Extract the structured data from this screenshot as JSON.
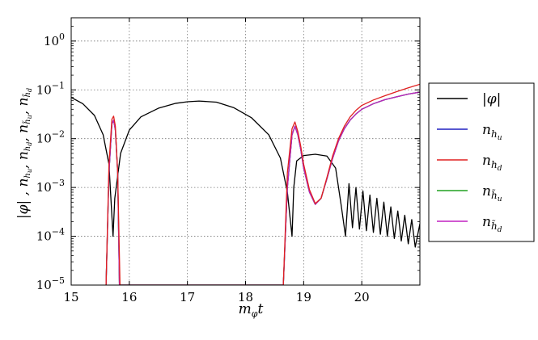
{
  "chart_data": {
    "type": "line",
    "xlabel": "m_φt",
    "ylabel": "|φ| , n_hu, n_hd, n_h̃u, n_h̃d",
    "xlim": [
      15,
      21
    ],
    "ylim": [
      1e-05,
      3
    ],
    "yscale": "log",
    "grid": true,
    "legend_position": "right",
    "x_ticks": [
      "15",
      "16",
      "17",
      "18",
      "19",
      "20"
    ],
    "y_ticks": [
      "10^-5",
      "10^-4",
      "10^-3",
      "10^-2",
      "10^-1",
      "10^0"
    ],
    "y_tick_values": [
      1e-05,
      0.0001,
      0.001,
      0.01,
      0.1,
      1
    ],
    "series": [
      {
        "name": "|φ|",
        "color": "#000000",
        "description": "oscillating condensate amplitude with zero crossings",
        "points": [
          [
            15.0,
            0.07
          ],
          [
            15.2,
            0.052
          ],
          [
            15.4,
            0.03
          ],
          [
            15.55,
            0.012
          ],
          [
            15.65,
            0.003
          ],
          [
            15.72,
            0.0001
          ],
          [
            15.75,
            0.0006
          ],
          [
            15.85,
            0.005
          ],
          [
            16.0,
            0.015
          ],
          [
            16.2,
            0.028
          ],
          [
            16.5,
            0.042
          ],
          [
            16.8,
            0.053
          ],
          [
            17.0,
            0.057
          ],
          [
            17.2,
            0.059
          ],
          [
            17.5,
            0.056
          ],
          [
            17.8,
            0.043
          ],
          [
            18.1,
            0.027
          ],
          [
            18.4,
            0.012
          ],
          [
            18.6,
            0.004
          ],
          [
            18.72,
            0.0008
          ],
          [
            18.8,
            0.0001
          ],
          [
            18.83,
            0.001
          ],
          [
            18.88,
            0.0035
          ],
          [
            19.0,
            0.0045
          ],
          [
            19.2,
            0.0048
          ],
          [
            19.4,
            0.0044
          ],
          [
            19.55,
            0.0025
          ],
          [
            19.65,
            0.0004
          ],
          [
            19.72,
            0.0001
          ],
          [
            19.78,
            0.0012
          ],
          [
            19.84,
            0.00015
          ],
          [
            19.9,
            0.001
          ],
          [
            19.96,
            0.00014
          ],
          [
            20.02,
            0.00085
          ],
          [
            20.08,
            0.00013
          ],
          [
            20.14,
            0.0007
          ],
          [
            20.2,
            0.00012
          ],
          [
            20.26,
            0.0006
          ],
          [
            20.32,
            0.00011
          ],
          [
            20.38,
            0.0005
          ],
          [
            20.44,
            0.0001
          ],
          [
            20.5,
            0.0004
          ],
          [
            20.56,
            9e-05
          ],
          [
            20.62,
            0.00033
          ],
          [
            20.68,
            8e-05
          ],
          [
            20.74,
            0.00027
          ],
          [
            20.8,
            7e-05
          ],
          [
            20.86,
            0.00022
          ],
          [
            20.92,
            6e-05
          ],
          [
            21.0,
            0.00018
          ]
        ]
      },
      {
        "name": "n_hu",
        "color": "#2020c0",
        "points": [
          [
            15.6,
            1e-05
          ],
          [
            15.65,
            0.002
          ],
          [
            15.7,
            0.02
          ],
          [
            15.73,
            0.024
          ],
          [
            15.76,
            0.015
          ],
          [
            15.8,
            0.002
          ],
          [
            15.83,
            1e-05
          ],
          [
            18.65,
            1e-05
          ],
          [
            18.72,
            0.001
          ],
          [
            18.8,
            0.012
          ],
          [
            18.85,
            0.018
          ],
          [
            18.9,
            0.012
          ],
          [
            18.95,
            0.006
          ],
          [
            19.0,
            0.0025
          ],
          [
            19.1,
            0.0008
          ],
          [
            19.2,
            0.00045
          ],
          [
            19.3,
            0.0006
          ],
          [
            19.4,
            0.0015
          ],
          [
            19.5,
            0.004
          ],
          [
            19.6,
            0.009
          ],
          [
            19.7,
            0.016
          ],
          [
            19.8,
            0.024
          ],
          [
            19.9,
            0.032
          ],
          [
            20.0,
            0.04
          ],
          [
            20.2,
            0.052
          ],
          [
            20.4,
            0.063
          ],
          [
            20.6,
            0.072
          ],
          [
            20.8,
            0.082
          ],
          [
            21.0,
            0.09
          ]
        ]
      },
      {
        "name": "n_hd",
        "color": "#e02020",
        "points": [
          [
            15.6,
            1e-05
          ],
          [
            15.65,
            0.003
          ],
          [
            15.7,
            0.025
          ],
          [
            15.73,
            0.029
          ],
          [
            15.76,
            0.018
          ],
          [
            15.8,
            0.002
          ],
          [
            15.84,
            1e-05
          ],
          [
            18.65,
            1e-05
          ],
          [
            18.72,
            0.002
          ],
          [
            18.8,
            0.016
          ],
          [
            18.85,
            0.022
          ],
          [
            18.9,
            0.014
          ],
          [
            18.95,
            0.007
          ],
          [
            19.0,
            0.003
          ],
          [
            19.1,
            0.0009
          ],
          [
            19.2,
            0.00047
          ],
          [
            19.3,
            0.0006
          ],
          [
            19.4,
            0.0016
          ],
          [
            19.5,
            0.0045
          ],
          [
            19.6,
            0.01
          ],
          [
            19.7,
            0.018
          ],
          [
            19.8,
            0.028
          ],
          [
            19.9,
            0.038
          ],
          [
            20.0,
            0.048
          ],
          [
            20.2,
            0.062
          ],
          [
            20.4,
            0.076
          ],
          [
            20.6,
            0.092
          ],
          [
            20.8,
            0.11
          ],
          [
            21.0,
            0.13
          ]
        ]
      },
      {
        "name": "n_h̃u",
        "color": "#20a020",
        "points": [
          [
            15.6,
            1e-05
          ],
          [
            15.65,
            0.002
          ],
          [
            15.7,
            0.02
          ],
          [
            15.73,
            0.024
          ],
          [
            15.76,
            0.015
          ],
          [
            15.8,
            0.002
          ],
          [
            15.83,
            1e-05
          ],
          [
            18.65,
            1e-05
          ],
          [
            18.72,
            0.001
          ],
          [
            18.8,
            0.012
          ],
          [
            18.85,
            0.018
          ],
          [
            18.9,
            0.012
          ],
          [
            18.95,
            0.006
          ],
          [
            19.0,
            0.0025
          ],
          [
            19.1,
            0.0008
          ],
          [
            19.2,
            0.00045
          ],
          [
            19.3,
            0.0006
          ],
          [
            19.4,
            0.0015
          ],
          [
            19.5,
            0.004
          ],
          [
            19.6,
            0.009
          ],
          [
            19.7,
            0.016
          ],
          [
            19.8,
            0.024
          ],
          [
            19.9,
            0.032
          ],
          [
            20.0,
            0.04
          ],
          [
            20.2,
            0.052
          ],
          [
            20.4,
            0.063
          ],
          [
            20.6,
            0.072
          ],
          [
            20.8,
            0.082
          ],
          [
            21.0,
            0.09
          ]
        ]
      },
      {
        "name": "n_h̃d",
        "color": "#c020c0",
        "points": [
          [
            15.6,
            1e-05
          ],
          [
            15.65,
            0.002
          ],
          [
            15.7,
            0.02
          ],
          [
            15.73,
            0.024
          ],
          [
            15.76,
            0.015
          ],
          [
            15.8,
            0.002
          ],
          [
            15.83,
            1e-05
          ],
          [
            18.65,
            1e-05
          ],
          [
            18.72,
            0.001
          ],
          [
            18.8,
            0.012
          ],
          [
            18.85,
            0.018
          ],
          [
            18.9,
            0.012
          ],
          [
            18.95,
            0.006
          ],
          [
            19.0,
            0.0025
          ],
          [
            19.1,
            0.0008
          ],
          [
            19.2,
            0.00045
          ],
          [
            19.3,
            0.0006
          ],
          [
            19.4,
            0.0015
          ],
          [
            19.5,
            0.004
          ],
          [
            19.6,
            0.009
          ],
          [
            19.7,
            0.016
          ],
          [
            19.8,
            0.024
          ],
          [
            19.9,
            0.032
          ],
          [
            20.0,
            0.04
          ],
          [
            20.2,
            0.052
          ],
          [
            20.4,
            0.063
          ],
          [
            20.6,
            0.072
          ],
          [
            20.8,
            0.082
          ],
          [
            21.0,
            0.09
          ]
        ]
      }
    ]
  }
}
